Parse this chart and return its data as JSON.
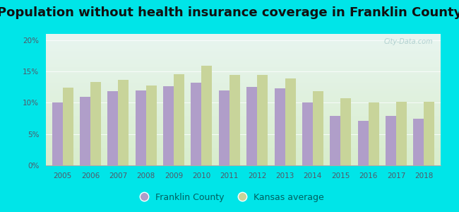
{
  "title": "Population without health insurance coverage in Franklin County",
  "years": [
    2005,
    2006,
    2007,
    2008,
    2009,
    2010,
    2011,
    2012,
    2013,
    2014,
    2015,
    2016,
    2017,
    2018
  ],
  "franklin_county": [
    10.0,
    11.0,
    11.8,
    12.0,
    12.7,
    13.2,
    12.0,
    12.5,
    12.3,
    10.0,
    7.9,
    7.1,
    7.9,
    7.4
  ],
  "kansas_avg": [
    12.4,
    13.3,
    13.7,
    12.8,
    14.6,
    15.9,
    14.4,
    14.4,
    13.9,
    11.9,
    10.7,
    10.0,
    10.2,
    10.2
  ],
  "franklin_color": "#b09ec9",
  "kansas_color": "#c8d49a",
  "background_outer": "#00e5e8",
  "background_plot_top": "#e8f5f0",
  "background_plot_bottom": "#d8edcc",
  "yticks": [
    0,
    5,
    10,
    15,
    20
  ],
  "ylim": [
    0,
    21
  ],
  "title_fontsize": 13,
  "title_color": "#111111",
  "tick_color": "#555566",
  "watermark": "City-Data.com",
  "legend_text_color": "#006060"
}
